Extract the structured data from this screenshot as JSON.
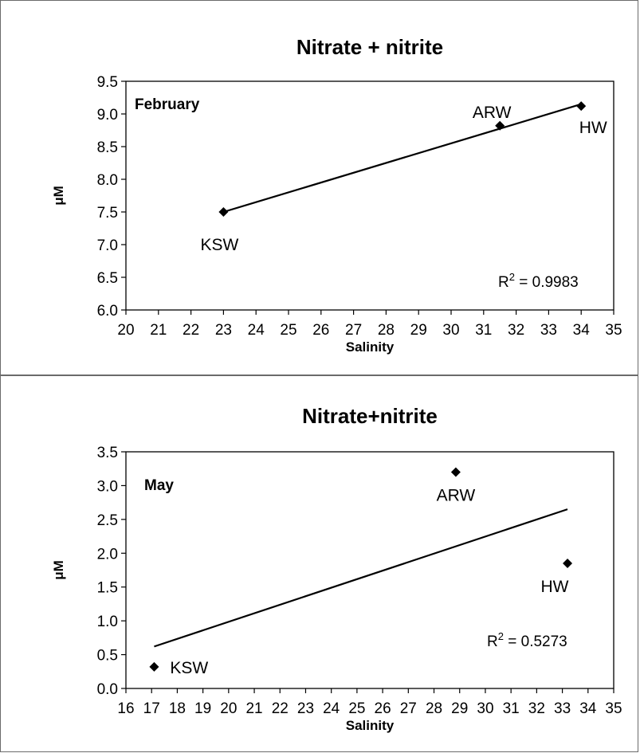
{
  "chart_data": [
    {
      "type": "scatter",
      "title": "Nitrate + nitrite",
      "xlabel": "Salinity",
      "ylabel": "μM",
      "xlim": [
        20,
        35
      ],
      "ylim": [
        6.0,
        9.5
      ],
      "xticks": [
        "20",
        "21",
        "22",
        "23",
        "24",
        "25",
        "26",
        "27",
        "28",
        "29",
        "30",
        "31",
        "32",
        "33",
        "34",
        "35"
      ],
      "yticks": [
        "6.0",
        "6.5",
        "7.0",
        "7.5",
        "8.0",
        "8.5",
        "9.0",
        "9.5"
      ],
      "annotation": "February",
      "points": [
        {
          "label": "KSW",
          "x": 23.0,
          "y": 7.5
        },
        {
          "label": "ARW",
          "x": 31.5,
          "y": 8.82
        },
        {
          "label": "HW",
          "x": 34.0,
          "y": 9.12
        }
      ],
      "trendline": {
        "x": [
          23.0,
          34.0
        ],
        "y": [
          7.5,
          9.15
        ]
      },
      "r2_prefix": "R",
      "r2_sup": "2",
      "r2_value": " = 0.9983",
      "grid": false,
      "legend": "none"
    },
    {
      "type": "scatter",
      "title": "Nitrate+nitrite",
      "xlabel": "Salinity",
      "ylabel": "μM",
      "xlim": [
        16,
        35
      ],
      "ylim": [
        0.0,
        3.5
      ],
      "xticks": [
        "16",
        "17",
        "18",
        "19",
        "20",
        "21",
        "22",
        "23",
        "24",
        "25",
        "26",
        "27",
        "28",
        "29",
        "30",
        "31",
        "32",
        "33",
        "34",
        "35"
      ],
      "yticks": [
        "0.0",
        "0.5",
        "1.0",
        "1.5",
        "2.0",
        "2.5",
        "3.0",
        "3.5"
      ],
      "annotation": "May",
      "points": [
        {
          "label": "KSW",
          "x": 17.1,
          "y": 0.32
        },
        {
          "label": "ARW",
          "x": 28.85,
          "y": 3.2
        },
        {
          "label": "HW",
          "x": 33.2,
          "y": 1.85
        }
      ],
      "trendline": {
        "x": [
          17.1,
          33.2
        ],
        "y": [
          0.62,
          2.65
        ]
      },
      "r2_prefix": "R",
      "r2_sup": "2",
      "r2_value": " = 0.5273",
      "grid": false,
      "legend": "none"
    }
  ]
}
